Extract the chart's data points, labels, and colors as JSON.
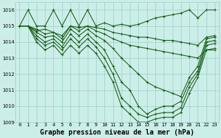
{
  "title": "Graphe pression niveau de la mer (hPa)",
  "x_labels": [
    "0",
    "1",
    "2",
    "3",
    "4",
    "5",
    "6",
    "7",
    "8",
    "9",
    "10",
    "11",
    "12",
    "13",
    "14",
    "15",
    "16",
    "17",
    "18",
    "19",
    "20",
    "21",
    "22",
    "23"
  ],
  "ylim": [
    1009.0,
    1016.5
  ],
  "xlim": [
    -0.5,
    23.5
  ],
  "yticks": [
    1009,
    1010,
    1011,
    1012,
    1013,
    1014,
    1015,
    1016
  ],
  "background_color": "#cceee8",
  "grid_color": "#99ccc4",
  "line_color": "#1a5c1a",
  "lines": [
    [
      1015.0,
      1016.0,
      1015.0,
      1015.0,
      1016.0,
      1015.0,
      1016.0,
      1015.0,
      1016.0,
      1015.0,
      1015.2,
      1015.0,
      1015.1,
      1015.0,
      1015.1,
      1015.3,
      1015.5,
      1015.6,
      1015.7,
      1015.8,
      1016.0,
      1015.5,
      1016.0,
      1016.0
    ],
    [
      1015.0,
      1015.0,
      1014.7,
      1014.8,
      1014.6,
      1014.4,
      1015.0,
      1014.9,
      1015.0,
      1014.9,
      1014.8,
      1014.6,
      1014.5,
      1014.4,
      1014.3,
      1014.3,
      1014.2,
      1014.1,
      1014.1,
      1014.0,
      1013.9,
      1013.8,
      1014.3,
      1014.4
    ],
    [
      1015.0,
      1015.0,
      1014.8,
      1014.5,
      1014.6,
      1014.2,
      1015.0,
      1014.7,
      1015.0,
      1014.7,
      1014.5,
      1014.2,
      1014.0,
      1013.8,
      1013.7,
      1013.6,
      1013.5,
      1013.4,
      1013.3,
      1013.2,
      1013.1,
      1013.0,
      1013.5,
      1013.5
    ],
    [
      1015.0,
      1015.0,
      1014.6,
      1014.3,
      1014.4,
      1014.0,
      1014.8,
      1014.4,
      1014.8,
      1014.4,
      1014.1,
      1013.6,
      1013.0,
      1012.5,
      1012.0,
      1011.5,
      1011.2,
      1011.0,
      1010.8,
      1010.6,
      1011.8,
      1012.5,
      1014.2,
      1014.3
    ],
    [
      1015.0,
      1015.0,
      1014.4,
      1014.0,
      1014.2,
      1013.7,
      1014.5,
      1014.0,
      1014.5,
      1014.0,
      1013.5,
      1012.5,
      1011.5,
      1011.0,
      1010.0,
      1009.5,
      1009.8,
      1010.0,
      1010.0,
      1010.3,
      1011.5,
      1012.2,
      1014.0,
      1014.1
    ],
    [
      1015.0,
      1015.0,
      1014.2,
      1013.8,
      1014.0,
      1013.5,
      1014.2,
      1013.7,
      1014.2,
      1013.7,
      1013.0,
      1012.0,
      1010.5,
      1010.0,
      1009.5,
      1009.3,
      1009.5,
      1009.6,
      1009.6,
      1009.9,
      1011.2,
      1012.0,
      1013.8,
      1013.9
    ],
    [
      1015.0,
      1015.0,
      1014.0,
      1013.5,
      1013.8,
      1013.2,
      1013.8,
      1013.3,
      1013.8,
      1013.3,
      1012.5,
      1011.5,
      1010.0,
      1009.5,
      1009.0,
      1009.0,
      1009.2,
      1009.3,
      1009.3,
      1009.6,
      1010.8,
      1011.8,
      1013.5,
      1013.6
    ]
  ],
  "marker": "+",
  "markersize": 3,
  "linewidth": 0.8,
  "title_fontsize": 7,
  "tick_fontsize": 5
}
